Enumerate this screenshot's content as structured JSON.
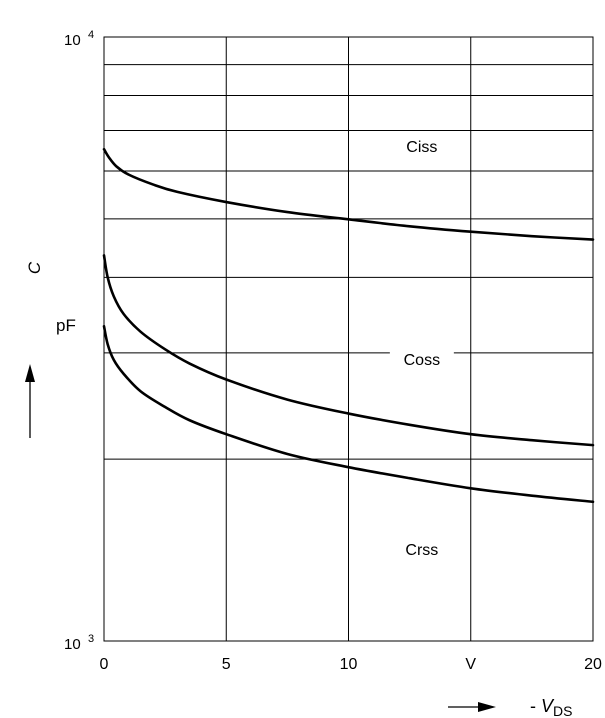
{
  "chart_data": {
    "type": "line",
    "xlim": [
      0,
      20
    ],
    "ylim": [
      1000,
      10000
    ],
    "y_scale": "log",
    "x_ticks": [
      {
        "value": 0,
        "label": "0"
      },
      {
        "value": 5,
        "label": "5"
      },
      {
        "value": 10,
        "label": "10"
      },
      {
        "value": 15,
        "label": "V"
      },
      {
        "value": 20,
        "label": "20"
      }
    ],
    "y_ticks": [
      {
        "value": 1000,
        "base": "10",
        "exp": "3"
      },
      {
        "value": 10000,
        "base": "10",
        "exp": "4"
      }
    ],
    "y_gridlines": [
      2000,
      3000,
      4000,
      5000,
      6000,
      7000,
      8000,
      9000
    ],
    "grid": true,
    "ylabel_var": "C",
    "ylabel_unit": "pF",
    "xlabel_prefix": "- ",
    "xlabel_var": "V",
    "xlabel_sub": "DS",
    "series": [
      {
        "name": "Ciss",
        "label_at": {
          "x": 13.0,
          "y": 6600
        },
        "x": [
          0,
          0.2,
          0.5,
          1,
          2,
          3,
          5,
          7.5,
          10,
          12.5,
          15,
          17.5,
          20
        ],
        "y": [
          6520,
          6320,
          6110,
          5920,
          5700,
          5540,
          5330,
          5130,
          4990,
          4860,
          4760,
          4680,
          4620
        ]
      },
      {
        "name": "Coss",
        "label_at": {
          "x": 13.0,
          "y": 2930
        },
        "x": [
          0,
          0.15,
          0.4,
          0.8,
          1.5,
          2.5,
          3.5,
          5,
          7.5,
          10,
          12.5,
          15,
          17.5,
          20
        ],
        "y": [
          4350,
          4000,
          3720,
          3480,
          3250,
          3040,
          2880,
          2710,
          2510,
          2380,
          2280,
          2200,
          2150,
          2110
        ]
      },
      {
        "name": "Crss",
        "label_at": {
          "x": 13.0,
          "y": 1420
        },
        "x": [
          0,
          0.15,
          0.4,
          0.8,
          1.5,
          2.5,
          3.5,
          5,
          7.5,
          10,
          12.5,
          15,
          17.5,
          20
        ],
        "y": [
          3320,
          3100,
          2920,
          2770,
          2590,
          2440,
          2320,
          2200,
          2040,
          1940,
          1860,
          1790,
          1740,
          1700
        ]
      }
    ]
  }
}
